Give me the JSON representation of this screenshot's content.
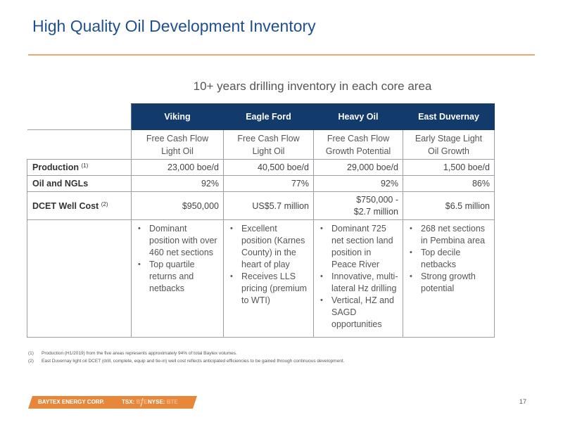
{
  "title": "High Quality Oil Development Inventory",
  "subtitle": "10+ years drilling inventory in each core area",
  "table": {
    "columns": [
      "Viking",
      "Eagle Ford",
      "Heavy Oil",
      "East Duvernay"
    ],
    "descriptors": [
      [
        "Free Cash Flow",
        "Light Oil"
      ],
      [
        "Free Cash Flow",
        "Light Oil"
      ],
      [
        "Free Cash Flow",
        "Growth Potential"
      ],
      [
        "Early Stage Light",
        "Oil Growth"
      ]
    ],
    "rows": [
      {
        "label": "Production",
        "note": "(1)",
        "values": [
          "23,000 boe/d",
          "40,500 boe/d",
          "29,000 boe/d",
          "1,500 boe/d"
        ]
      },
      {
        "label": "Oil and NGLs",
        "note": "",
        "values": [
          "92%",
          "77%",
          "92%",
          "86%"
        ]
      },
      {
        "label": "DCET Well Cost",
        "note": "(2)",
        "values": [
          "$950,000",
          "US$5.7 million",
          "$750,000 - $2.7 million",
          "$6.5 million"
        ]
      }
    ],
    "heavy_oil_cost_lines": [
      "$750,000 -",
      "$2.7 million"
    ],
    "bullets": [
      [
        "Dominant position with over 460 net sections",
        "Top quartile returns and netbacks"
      ],
      [
        "Excellent position (Karnes County) in the heart of play",
        "Receives LLS pricing (premium to WTI)"
      ],
      [
        "Dominant 725 net section land position in Peace River",
        "Innovative, multi-lateral Hz drilling",
        "Vertical, HZ and SAGD opportunities"
      ],
      [
        "268 net sections in Pembina area",
        "Top decile netbacks",
        "Strong growth potential"
      ]
    ]
  },
  "footnotes": [
    {
      "num": "(1)",
      "text": "Production (H1/2019) from the five areas represents approximately 94% of total Baytex volumes."
    },
    {
      "num": "(2)",
      "text": "East Duvernay light oil DCET (drill, complete, equip and tie-in) well cost reflects anticipated efficiencies to be gained through continuous development."
    }
  ],
  "footer": {
    "company": "BAYTEX ENERGY CORP.",
    "tsx_prefix": "TSX:",
    "tsx_ticker": "BTE",
    "nyse_prefix": "NYSE:",
    "nyse_ticker": "BTE",
    "page_number": "17"
  },
  "colors": {
    "title": "#1d4f91",
    "header_bg": "#123a6b",
    "accent_orange": "#e8873a",
    "rule_orange": "#f0a868"
  }
}
